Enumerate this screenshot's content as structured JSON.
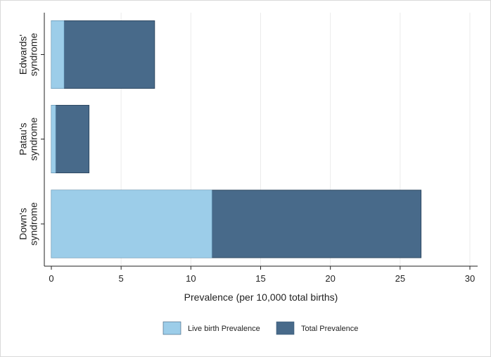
{
  "chart_data": {
    "type": "bar",
    "orientation": "horizontal",
    "stacked": false,
    "overlay": true,
    "categories": [
      [
        "Edwards'",
        "syndrome"
      ],
      [
        "Patau's",
        "syndrome"
      ],
      [
        "Down's",
        "syndrome"
      ]
    ],
    "series": [
      {
        "name": "Total Prevalence",
        "color": "#486a8a",
        "values": [
          7.4,
          2.7,
          26.5
        ]
      },
      {
        "name": "Live birth Prevalence",
        "color": "#9ccde9",
        "values": [
          0.9,
          0.3,
          11.5
        ]
      }
    ],
    "xlabel": "Prevalence (per 10,000 total births)",
    "ylabel": "",
    "xlim": [
      0,
      30
    ],
    "xticks": [
      0,
      5,
      10,
      15,
      20,
      25,
      30
    ],
    "grid": true,
    "legend": {
      "placement": "bottom",
      "entries": [
        {
          "label": "Live birth Prevalence",
          "color": "#9ccde9"
        },
        {
          "label": "Total Prevalence",
          "color": "#486a8a"
        }
      ]
    }
  }
}
